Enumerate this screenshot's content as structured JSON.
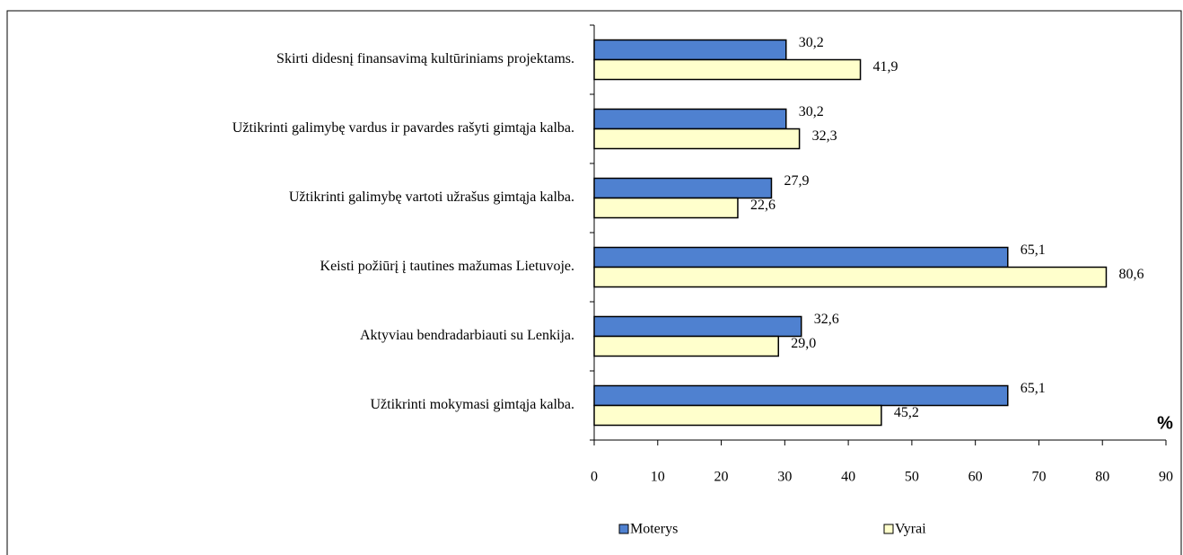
{
  "chart_data": {
    "type": "hbar",
    "categories": [
      "Skirti didesnį finansavimą kultūriniams projektams.",
      "Užtikrinti galimybę vardus ir pavardes rašyti gimtąja kalba.",
      "Užtikrinti galimybę vartoti užrašus gimtąja kalba.",
      "Keisti požiūrį į tautines mažumas Lietuvoje.",
      "Aktyviau bendradarbiauti su Lenkija.",
      "Užtikrinti mokymasi gimtąja kalba."
    ],
    "series": [
      {
        "name": "Moterys",
        "color": "#4f81d0",
        "values": [
          30.2,
          30.2,
          27.9,
          65.1,
          32.6,
          65.1
        ],
        "value_labels": [
          "30,2",
          "30,2",
          "27,9",
          "65,1",
          "32,6",
          "65,1"
        ]
      },
      {
        "name": "Vyrai",
        "color": "#ffffcc",
        "values": [
          41.9,
          32.3,
          22.6,
          80.6,
          29.0,
          45.2
        ],
        "value_labels": [
          "41,9",
          "32,3",
          "22,6",
          "80,6",
          "29,0",
          "45,2"
        ]
      }
    ],
    "xlim": [
      0,
      90
    ],
    "xticks": [
      0,
      10,
      20,
      30,
      40,
      50,
      60,
      70,
      80,
      90
    ],
    "x_label": "%",
    "grid": false,
    "legend": "bottom"
  }
}
